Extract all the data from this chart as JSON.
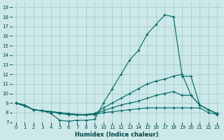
{
  "xlabel": "Humidex (Indice chaleur)",
  "bg_color": "#cce8e8",
  "grid_color": "#aacccc",
  "line_color": "#006666",
  "xlim": [
    -0.5,
    23.5
  ],
  "ylim": [
    7,
    19.5
  ],
  "xticks": [
    0,
    1,
    2,
    3,
    4,
    5,
    6,
    7,
    8,
    9,
    10,
    11,
    12,
    13,
    14,
    15,
    16,
    17,
    18,
    19,
    20,
    21,
    22,
    23
  ],
  "yticks": [
    7,
    8,
    9,
    10,
    11,
    12,
    13,
    14,
    15,
    16,
    17,
    18,
    19
  ],
  "series": [
    {
      "x": [
        0,
        1,
        2,
        3,
        4,
        5,
        6,
        7,
        8,
        9,
        10,
        11,
        12,
        13,
        14,
        15,
        16,
        17,
        18,
        19,
        20,
        21,
        22,
        23
      ],
      "y": [
        9,
        8.8,
        8.3,
        8.2,
        7.9,
        7.2,
        7.1,
        7.2,
        7.2,
        7.3,
        9.0,
        10.5,
        12.0,
        13.5,
        14.5,
        16.2,
        17.2,
        18.2,
        18.0,
        11.8,
        11.8,
        8.8,
        8.3,
        7.9
      ]
    },
    {
      "x": [
        0,
        1,
        2,
        3,
        4,
        5,
        6,
        7,
        8,
        9,
        10,
        11,
        12,
        13,
        14,
        15,
        16,
        17,
        18,
        19,
        20,
        21,
        22,
        23
      ],
      "y": [
        9,
        8.7,
        8.3,
        8.2,
        8.1,
        8.0,
        7.9,
        7.8,
        7.8,
        7.9,
        8.5,
        9.0,
        9.5,
        10.0,
        10.5,
        11.0,
        11.3,
        11.5,
        11.8,
        12.0,
        9.8,
        8.8,
        8.3,
        7.9
      ]
    },
    {
      "x": [
        0,
        1,
        2,
        3,
        4,
        5,
        6,
        7,
        8,
        9,
        10,
        11,
        12,
        13,
        14,
        15,
        16,
        17,
        18,
        19,
        20,
        21,
        22,
        23
      ],
      "y": [
        9,
        8.7,
        8.3,
        8.2,
        8.1,
        8.0,
        7.9,
        7.8,
        7.8,
        7.9,
        8.2,
        8.5,
        8.8,
        9.0,
        9.2,
        9.5,
        9.8,
        10.0,
        10.2,
        9.8,
        9.8,
        8.8,
        8.3,
        7.9
      ]
    },
    {
      "x": [
        0,
        1,
        2,
        3,
        4,
        5,
        6,
        7,
        8,
        9,
        10,
        11,
        12,
        13,
        14,
        15,
        16,
        17,
        18,
        19,
        20,
        21,
        22,
        23
      ],
      "y": [
        9,
        8.7,
        8.3,
        8.2,
        8.1,
        7.9,
        7.8,
        7.75,
        7.75,
        7.8,
        8.0,
        8.1,
        8.2,
        8.3,
        8.4,
        8.5,
        8.5,
        8.5,
        8.5,
        8.5,
        8.5,
        8.5,
        8.0,
        7.8
      ]
    }
  ]
}
